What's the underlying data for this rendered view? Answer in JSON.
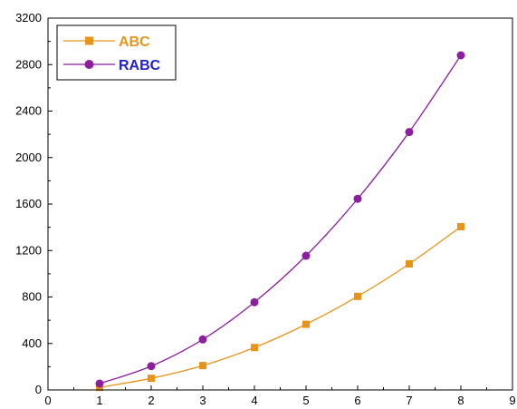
{
  "chart_data": {
    "type": "line",
    "title": "",
    "xlabel": "",
    "ylabel": "",
    "xlim": [
      0,
      9
    ],
    "ylim": [
      0,
      3200
    ],
    "xticks": [
      "0",
      "1",
      "2",
      "3",
      "4",
      "5",
      "6",
      "7",
      "8",
      "9"
    ],
    "yticks": [
      "0",
      "400",
      "800",
      "1200",
      "1600",
      "2000",
      "2400",
      "2800",
      "3200"
    ],
    "x": [
      1,
      2,
      3,
      4,
      5,
      6,
      7,
      8
    ],
    "series": [
      {
        "name": "ABC",
        "color": "#E8941A",
        "marker": "square",
        "values": [
          22,
          100,
          210,
          365,
          565,
          805,
          1085,
          1405
        ]
      },
      {
        "name": "RABC",
        "color": "#8B1F9E",
        "marker": "circle",
        "values": [
          55,
          205,
          435,
          755,
          1155,
          1645,
          2220,
          2880
        ]
      }
    ],
    "legend": {
      "placement": "top-left",
      "text_colors": [
        "#E8941A",
        "#1F1FCC"
      ]
    },
    "grid": false
  }
}
